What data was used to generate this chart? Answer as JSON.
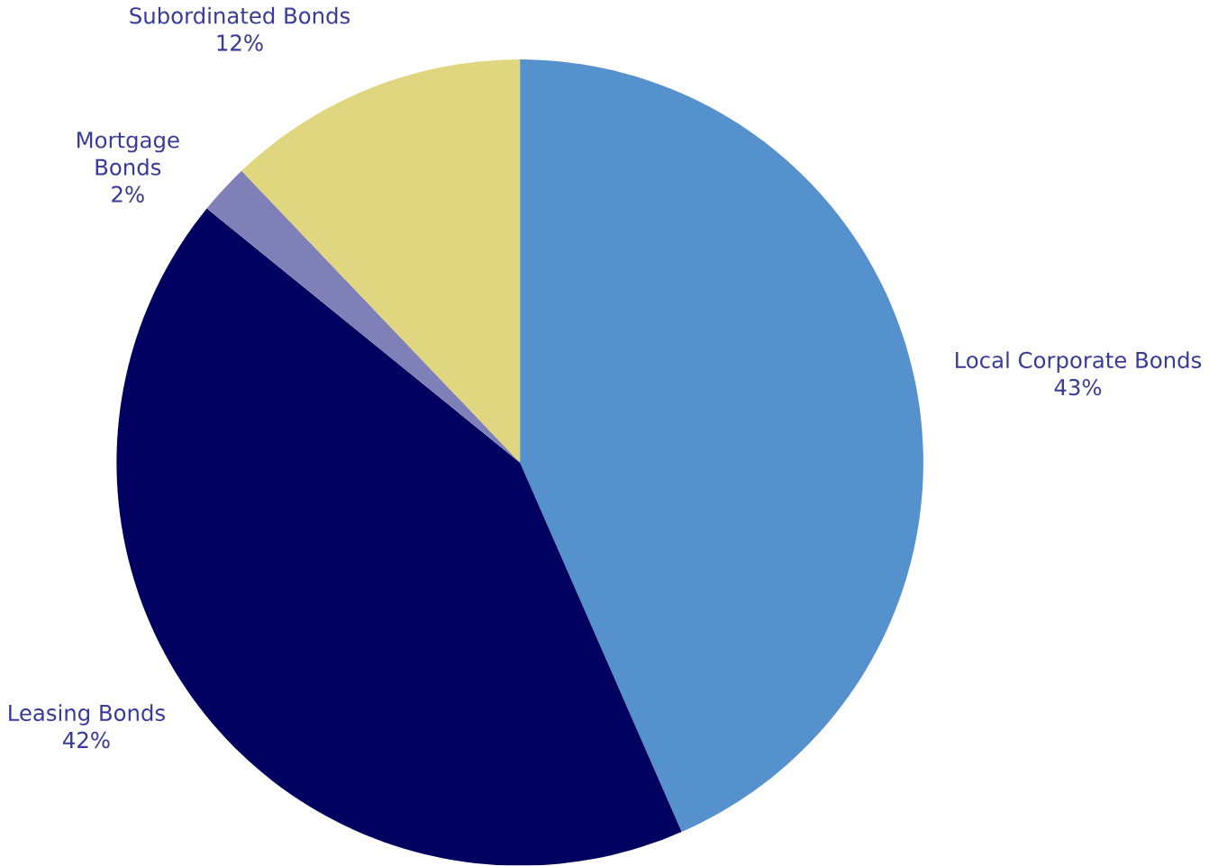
{
  "chart_data": {
    "type": "pie",
    "categories": [
      "Local Corporate Bonds",
      "Leasing Bonds",
      "Mortgage Bonds",
      "Subordinated Bonds"
    ],
    "values": [
      43,
      42,
      2,
      12
    ],
    "value_labels": [
      "43%",
      "42%",
      "2%",
      "12%"
    ],
    "colors": [
      "#5592cd",
      "#000060",
      "#8080b8",
      "#e0d680"
    ]
  }
}
